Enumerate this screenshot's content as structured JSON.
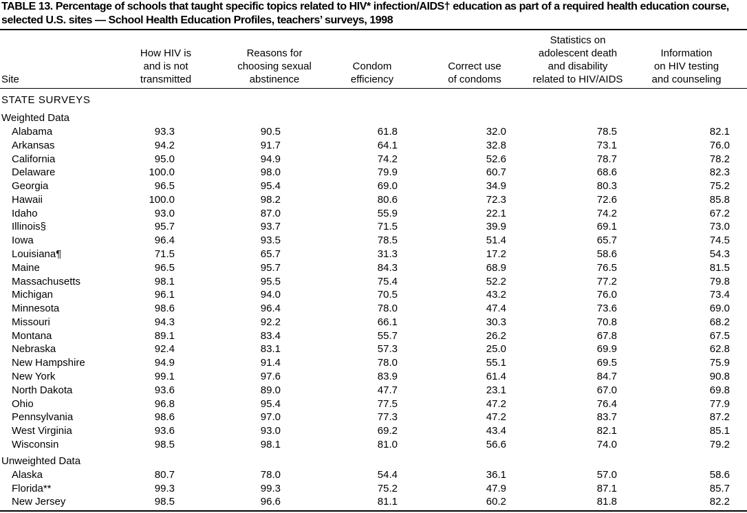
{
  "title": "TABLE 13. Percentage of schools that taught specific topics related to HIV* infection/AIDS† education as part of a required health education course, selected U.S. sites — School Health Education Profiles, teachers’ surveys, 1998",
  "table": {
    "columns": [
      [
        "Site"
      ],
      [
        "How HIV is",
        "and is not",
        "transmitted"
      ],
      [
        "Reasons for",
        "choosing sexual",
        "abstinence"
      ],
      [
        "Condom",
        "efficiency"
      ],
      [
        "Correct use",
        "of condoms"
      ],
      [
        "Statistics on",
        "adolescent death",
        "and disability",
        "related to HIV/AIDS"
      ],
      [
        "Information",
        "on HIV testing",
        "and counseling"
      ]
    ],
    "section": "STATE SURVEYS",
    "groups": [
      {
        "label": "Weighted Data",
        "rows": [
          [
            "Alabama",
            "93.3",
            "90.5",
            "61.8",
            "32.0",
            "78.5",
            "82.1"
          ],
          [
            "Arkansas",
            "94.2",
            "91.7",
            "64.1",
            "32.8",
            "73.1",
            "76.0"
          ],
          [
            "California",
            "95.0",
            "94.9",
            "74.2",
            "52.6",
            "78.7",
            "78.2"
          ],
          [
            "Delaware",
            "100.0",
            "98.0",
            "79.9",
            "60.7",
            "68.6",
            "82.3"
          ],
          [
            "Georgia",
            "96.5",
            "95.4",
            "69.0",
            "34.9",
            "80.3",
            "75.2"
          ],
          [
            "Hawaii",
            "100.0",
            "98.2",
            "80.6",
            "72.3",
            "72.6",
            "85.8"
          ],
          [
            "Idaho",
            "93.0",
            "87.0",
            "55.9",
            "22.1",
            "74.2",
            "67.2"
          ],
          [
            "Illinois§",
            "95.7",
            "93.7",
            "71.5",
            "39.9",
            "69.1",
            "73.0"
          ],
          [
            "Iowa",
            "96.4",
            "93.5",
            "78.5",
            "51.4",
            "65.7",
            "74.5"
          ],
          [
            "Louisiana¶",
            "71.5",
            "65.7",
            "31.3",
            "17.2",
            "58.6",
            "54.3"
          ],
          [
            "Maine",
            "96.5",
            "95.7",
            "84.3",
            "68.9",
            "76.5",
            "81.5"
          ],
          [
            "Massachusetts",
            "98.1",
            "95.5",
            "75.4",
            "52.2",
            "77.2",
            "79.8"
          ],
          [
            "Michigan",
            "96.1",
            "94.0",
            "70.5",
            "43.2",
            "76.0",
            "73.4"
          ],
          [
            "Minnesota",
            "98.6",
            "96.4",
            "78.0",
            "47.4",
            "73.6",
            "69.0"
          ],
          [
            "Missouri",
            "94.3",
            "92.2",
            "66.1",
            "30.3",
            "70.8",
            "68.2"
          ],
          [
            "Montana",
            "89.1",
            "83.4",
            "55.7",
            "26.2",
            "67.8",
            "67.5"
          ],
          [
            "Nebraska",
            "92.4",
            "83.1",
            "57.3",
            "25.0",
            "69.9",
            "62.8"
          ],
          [
            "New Hampshire",
            "94.9",
            "91.4",
            "78.0",
            "55.1",
            "69.5",
            "75.9"
          ],
          [
            "New York",
            "99.1",
            "97.6",
            "83.9",
            "61.4",
            "84.7",
            "90.8"
          ],
          [
            "North Dakota",
            "93.6",
            "89.0",
            "47.7",
            "23.1",
            "67.0",
            "69.8"
          ],
          [
            "Ohio",
            "96.8",
            "95.4",
            "77.5",
            "47.2",
            "76.4",
            "77.9"
          ],
          [
            "Pennsylvania",
            "98.6",
            "97.0",
            "77.3",
            "47.2",
            "83.7",
            "87.2"
          ],
          [
            "West Virginia",
            "93.6",
            "93.0",
            "69.2",
            "43.4",
            "82.1",
            "85.1"
          ],
          [
            "Wisconsin",
            "98.5",
            "98.1",
            "81.0",
            "56.6",
            "74.0",
            "79.2"
          ]
        ]
      },
      {
        "label": "Unweighted Data",
        "rows": [
          [
            "Alaska",
            "80.7",
            "78.0",
            "54.4",
            "36.1",
            "57.0",
            "58.6"
          ],
          [
            "Florida**",
            "99.3",
            "99.3",
            "75.2",
            "47.9",
            "87.1",
            "85.7"
          ],
          [
            "New Jersey",
            "98.5",
            "96.6",
            "81.1",
            "60.2",
            "81.8",
            "82.2"
          ]
        ]
      }
    ]
  }
}
